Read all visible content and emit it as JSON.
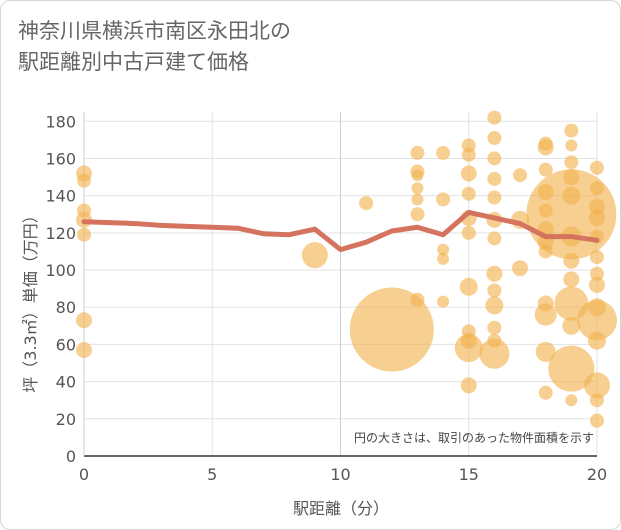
{
  "title_line1": "神奈川県横浜市南区永田北の",
  "title_line2": "駅距離別中古戸建て価格",
  "note": "円の大きさは、取引のあった物件面積を示す",
  "colors": {
    "bubble": "#f2b24d",
    "line": "#d4735e",
    "grid": "#e3e3e3",
    "axis": "#555555"
  },
  "chart_data": {
    "type": "scatter",
    "xlabel": "駅距離（分）",
    "ylabel": "坪（3.3㎡）単価（万円）",
    "xlim": [
      0,
      20
    ],
    "ylim": [
      0,
      185
    ],
    "x_ticks": [
      0,
      5,
      10,
      15,
      20
    ],
    "y_ticks": [
      0,
      20,
      40,
      60,
      80,
      100,
      120,
      140,
      160,
      180
    ],
    "grid": true,
    "bubbles": [
      {
        "x": 0,
        "y": 152,
        "s": 8
      },
      {
        "x": 0,
        "y": 148,
        "s": 7
      },
      {
        "x": 0,
        "y": 132,
        "s": 7
      },
      {
        "x": 0,
        "y": 127,
        "s": 8
      },
      {
        "x": 0,
        "y": 119,
        "s": 7
      },
      {
        "x": 0,
        "y": 73,
        "s": 8
      },
      {
        "x": 0,
        "y": 57,
        "s": 8
      },
      {
        "x": 9,
        "y": 108,
        "s": 13
      },
      {
        "x": 11,
        "y": 136,
        "s": 7
      },
      {
        "x": 12,
        "y": 68,
        "s": 42
      },
      {
        "x": 13,
        "y": 163,
        "s": 7
      },
      {
        "x": 13,
        "y": 153,
        "s": 7
      },
      {
        "x": 13,
        "y": 151,
        "s": 6
      },
      {
        "x": 13,
        "y": 144,
        "s": 6
      },
      {
        "x": 13,
        "y": 138,
        "s": 6
      },
      {
        "x": 13,
        "y": 130,
        "s": 7
      },
      {
        "x": 13,
        "y": 84,
        "s": 7
      },
      {
        "x": 14,
        "y": 163,
        "s": 7
      },
      {
        "x": 14,
        "y": 138,
        "s": 7
      },
      {
        "x": 14,
        "y": 111,
        "s": 6
      },
      {
        "x": 14,
        "y": 106,
        "s": 6
      },
      {
        "x": 14,
        "y": 83,
        "s": 6
      },
      {
        "x": 15,
        "y": 167,
        "s": 7
      },
      {
        "x": 15,
        "y": 162,
        "s": 7
      },
      {
        "x": 15,
        "y": 152,
        "s": 8
      },
      {
        "x": 15,
        "y": 141,
        "s": 7
      },
      {
        "x": 15,
        "y": 128,
        "s": 8
      },
      {
        "x": 15,
        "y": 120,
        "s": 7
      },
      {
        "x": 15,
        "y": 91,
        "s": 9
      },
      {
        "x": 15,
        "y": 67,
        "s": 7
      },
      {
        "x": 15,
        "y": 62,
        "s": 8
      },
      {
        "x": 15,
        "y": 58,
        "s": 14
      },
      {
        "x": 15,
        "y": 38,
        "s": 8
      },
      {
        "x": 16,
        "y": 182,
        "s": 7
      },
      {
        "x": 16,
        "y": 171,
        "s": 7
      },
      {
        "x": 16,
        "y": 160,
        "s": 7
      },
      {
        "x": 16,
        "y": 149,
        "s": 7
      },
      {
        "x": 16,
        "y": 139,
        "s": 7
      },
      {
        "x": 16,
        "y": 127,
        "s": 8
      },
      {
        "x": 16,
        "y": 117,
        "s": 7
      },
      {
        "x": 16,
        "y": 98,
        "s": 8
      },
      {
        "x": 16,
        "y": 89,
        "s": 7
      },
      {
        "x": 16,
        "y": 81,
        "s": 9
      },
      {
        "x": 16,
        "y": 69,
        "s": 7
      },
      {
        "x": 16,
        "y": 62,
        "s": 7
      },
      {
        "x": 16,
        "y": 55,
        "s": 15
      },
      {
        "x": 17,
        "y": 151,
        "s": 7
      },
      {
        "x": 17,
        "y": 127,
        "s": 9
      },
      {
        "x": 17,
        "y": 101,
        "s": 8
      },
      {
        "x": 18,
        "y": 168,
        "s": 7
      },
      {
        "x": 18,
        "y": 166,
        "s": 8
      },
      {
        "x": 18,
        "y": 154,
        "s": 7
      },
      {
        "x": 18,
        "y": 142,
        "s": 8
      },
      {
        "x": 18,
        "y": 132,
        "s": 7
      },
      {
        "x": 18,
        "y": 122,
        "s": 8
      },
      {
        "x": 18,
        "y": 115,
        "s": 8
      },
      {
        "x": 18,
        "y": 110,
        "s": 7
      },
      {
        "x": 18,
        "y": 82,
        "s": 8
      },
      {
        "x": 18,
        "y": 76,
        "s": 11
      },
      {
        "x": 18,
        "y": 56,
        "s": 10
      },
      {
        "x": 18,
        "y": 34,
        "s": 7
      },
      {
        "x": 19,
        "y": 175,
        "s": 7
      },
      {
        "x": 19,
        "y": 167,
        "s": 6
      },
      {
        "x": 19,
        "y": 158,
        "s": 7
      },
      {
        "x": 19,
        "y": 150,
        "s": 8
      },
      {
        "x": 19,
        "y": 140,
        "s": 9
      },
      {
        "x": 19,
        "y": 130,
        "s": 45
      },
      {
        "x": 19,
        "y": 118,
        "s": 10
      },
      {
        "x": 19,
        "y": 105,
        "s": 8
      },
      {
        "x": 19,
        "y": 95,
        "s": 8
      },
      {
        "x": 19,
        "y": 82,
        "s": 17
      },
      {
        "x": 19,
        "y": 70,
        "s": 9
      },
      {
        "x": 19,
        "y": 47,
        "s": 23
      },
      {
        "x": 19,
        "y": 30,
        "s": 6
      },
      {
        "x": 20,
        "y": 155,
        "s": 7
      },
      {
        "x": 20,
        "y": 144,
        "s": 7
      },
      {
        "x": 20,
        "y": 134,
        "s": 8
      },
      {
        "x": 20,
        "y": 128,
        "s": 8
      },
      {
        "x": 20,
        "y": 118,
        "s": 7
      },
      {
        "x": 20,
        "y": 107,
        "s": 7
      },
      {
        "x": 20,
        "y": 98,
        "s": 7
      },
      {
        "x": 20,
        "y": 92,
        "s": 8
      },
      {
        "x": 20,
        "y": 80,
        "s": 9
      },
      {
        "x": 20,
        "y": 73,
        "s": 20
      },
      {
        "x": 20,
        "y": 62,
        "s": 9
      },
      {
        "x": 20,
        "y": 38,
        "s": 13
      },
      {
        "x": 20,
        "y": 30,
        "s": 7
      },
      {
        "x": 20,
        "y": 19,
        "s": 7
      }
    ],
    "trend": {
      "x": [
        0,
        1,
        2,
        3,
        4,
        5,
        6,
        7,
        8,
        9,
        10,
        11,
        12,
        13,
        14,
        15,
        16,
        17,
        18,
        19,
        20
      ],
      "y": [
        126,
        125.5,
        125,
        124,
        123.5,
        123,
        122.5,
        119.5,
        119,
        122,
        111,
        115,
        121,
        123,
        119,
        131,
        128,
        125,
        118,
        118,
        116
      ]
    }
  }
}
